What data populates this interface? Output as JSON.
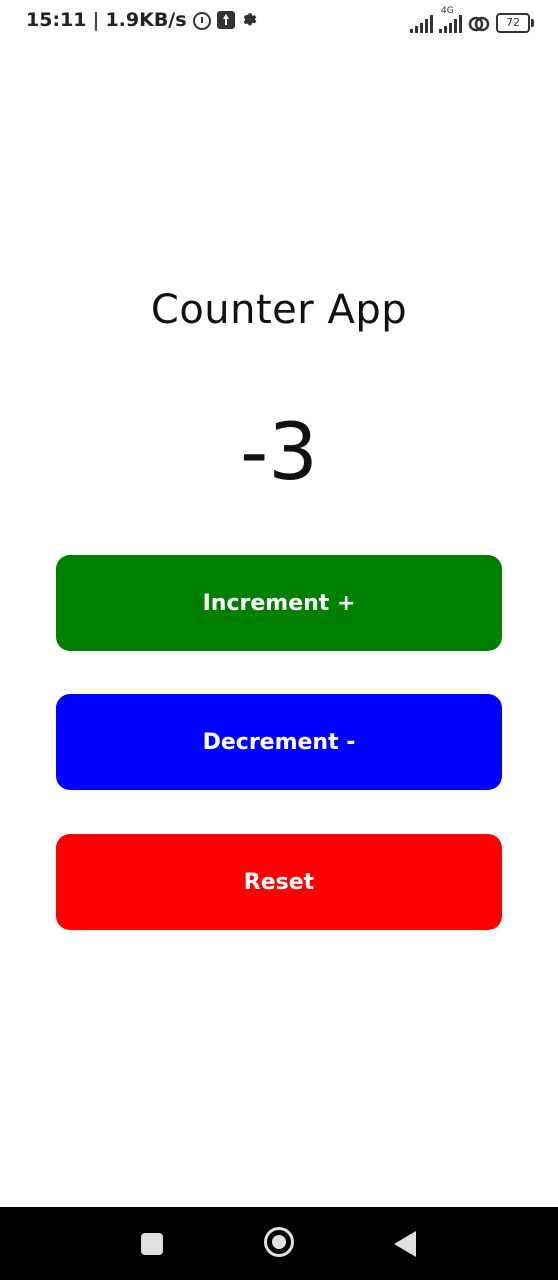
{
  "status_bar": {
    "time": "15:11",
    "separator": "|",
    "speed": "1.9KB/s",
    "network_type": "4G",
    "battery": "72"
  },
  "app": {
    "title": "Counter App",
    "counter_value": "-3"
  },
  "buttons": {
    "increment_label": "Increment +",
    "decrement_label": "Decrement -",
    "reset_label": "Reset"
  },
  "colors": {
    "increment": "#008000",
    "decrement": "#0000ff",
    "reset": "#ff0000"
  },
  "icons": {
    "status": [
      "alarm-icon",
      "upload-icon",
      "gear-icon",
      "signal-icon",
      "signal-4g-icon",
      "link-icon",
      "battery-icon"
    ],
    "nav": [
      "recents-icon",
      "home-icon",
      "back-icon"
    ]
  }
}
